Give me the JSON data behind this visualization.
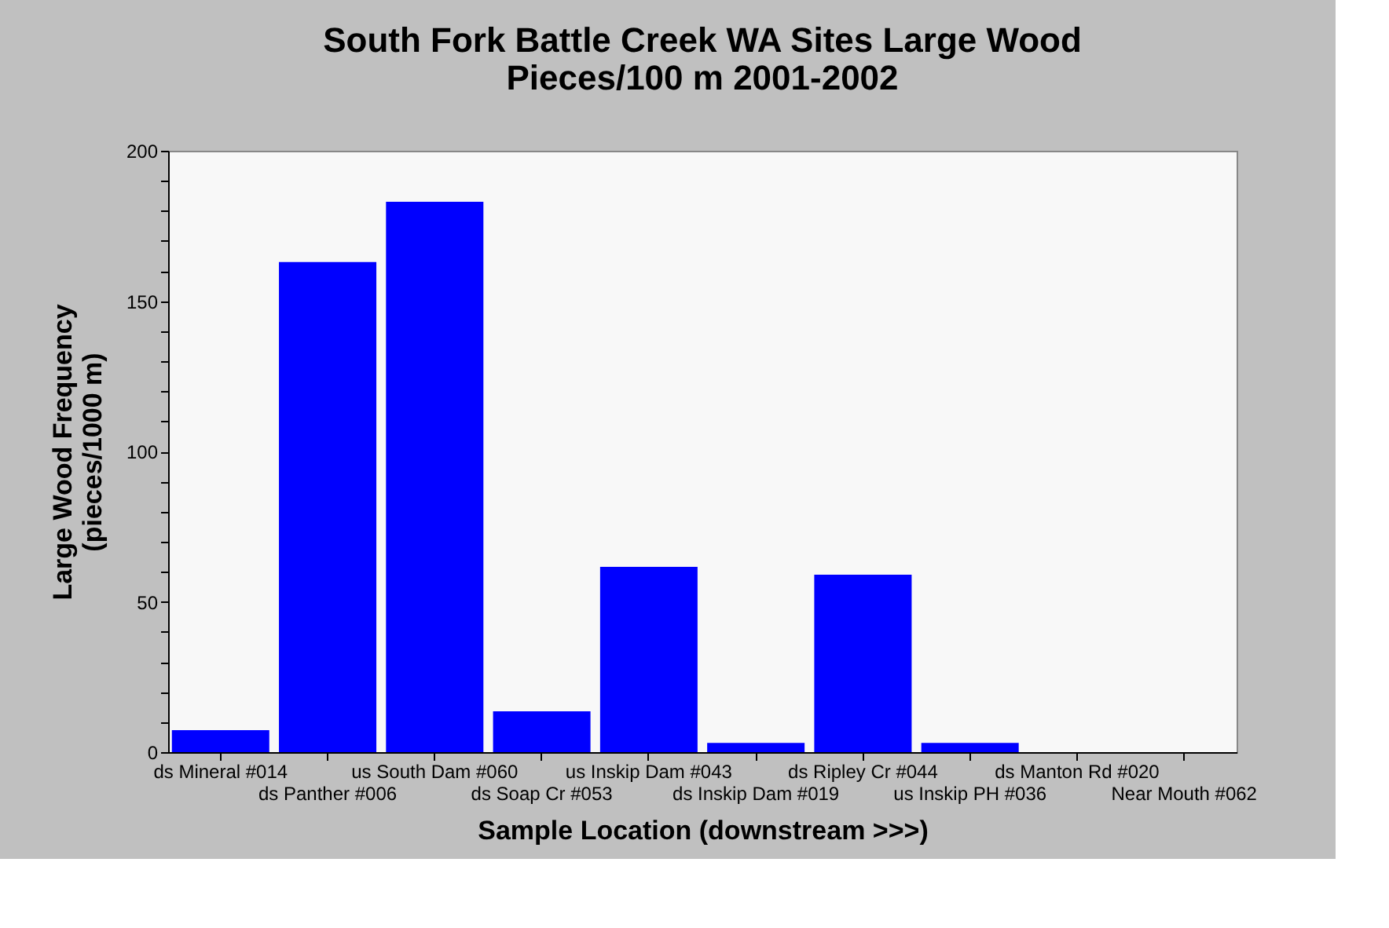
{
  "chart_data": {
    "type": "bar",
    "title": "South Fork Battle Creek WA Sites Large Wood Pieces/100 m 2001-2002",
    "xlabel": "Sample Location (downstream >>>)",
    "ylabel": "Large Wood Frequency (pieces/1000 m)",
    "categories": [
      "ds Mineral #014",
      "ds Panther #006",
      "us South Dam #060",
      "ds Soap Cr #053",
      "us Inskip Dam #043",
      "ds Inskip Dam #019",
      "ds Ripley Cr #044",
      "us Inskip PH #036",
      "ds Manton Rd #020",
      "Near Mouth #062"
    ],
    "values": [
      7.3,
      163,
      183,
      13.6,
      61.6,
      3.1,
      59,
      3.1,
      0,
      0
    ],
    "color": "#0000ff",
    "ylim": [
      0,
      200
    ],
    "yticks": [
      0,
      {
        "value": 10,
        "label": null
      },
      {
        "value": 20,
        "label": null
      },
      {
        "value": 30,
        "label": null
      },
      {
        "value": 40,
        "label": null
      },
      50,
      {
        "value": 60,
        "label": null
      },
      {
        "value": 70,
        "label": null
      },
      {
        "value": 80,
        "label": null
      },
      {
        "value": 90,
        "label": null
      },
      100,
      {
        "value": 110,
        "label": null
      },
      {
        "value": 120,
        "label": null
      },
      {
        "value": 130,
        "label": null
      },
      {
        "value": 140,
        "label": null
      },
      150,
      {
        "value": 160,
        "label": null
      },
      {
        "value": 170,
        "label": null
      },
      {
        "value": 180,
        "label": null
      },
      {
        "value": 190,
        "label": null
      },
      200
    ],
    "grid": false
  }
}
